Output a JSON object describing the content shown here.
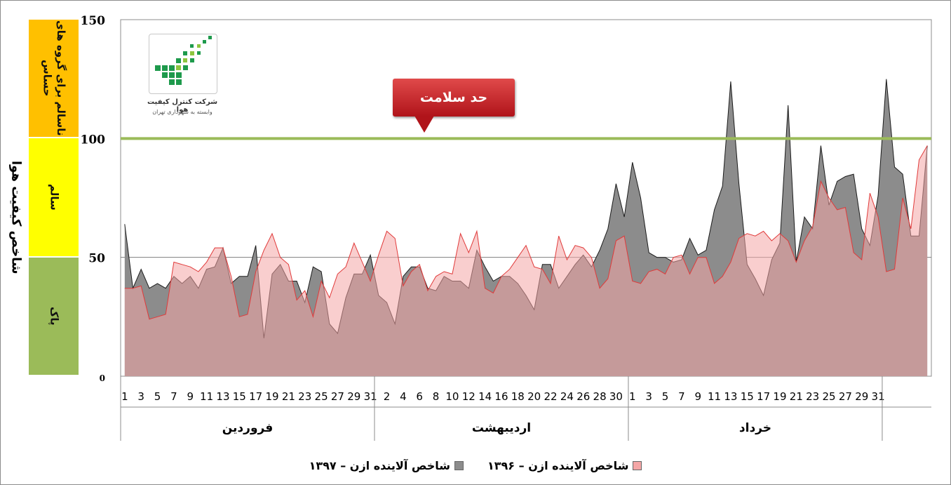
{
  "chart_data": {
    "type": "area",
    "ylabel": "شاخص کیفیت هوا",
    "ylim": [
      0,
      150
    ],
    "yticks": [
      "0",
      "50",
      "100",
      "150"
    ],
    "grid": "horizontal at 50",
    "months": [
      "فروردین",
      "اردیبهشت",
      "خرداد"
    ],
    "days_per_month": 31,
    "x_tick_labels": [
      "1",
      "3",
      "5",
      "7",
      "9",
      "11",
      "13",
      "15",
      "17",
      "19",
      "21",
      "23",
      "25",
      "27",
      "29",
      "31",
      "2",
      "4",
      "6",
      "8",
      "10",
      "12",
      "14",
      "16",
      "18",
      "20",
      "22",
      "24",
      "26",
      "28",
      "30",
      "1",
      "3",
      "5",
      "7",
      "9",
      "11",
      "13",
      "15",
      "17",
      "19",
      "21",
      "23",
      "25",
      "27",
      "29",
      "31"
    ],
    "threshold": {
      "value": 100,
      "label": "حد سلامت",
      "color": "#9bbb59"
    },
    "bands": [
      {
        "label": "پاک",
        "from": 0,
        "to": 50,
        "color": "#9bbb59"
      },
      {
        "label": "سالم",
        "from": 50,
        "to": 100,
        "color": "#ffff00"
      },
      {
        "label": "ناسالم برای گروه های حساس",
        "from": 100,
        "to": 150,
        "color": "#ffc000"
      }
    ],
    "series": [
      {
        "name": "شاخص آلاینده ازن – ۱۳۹۷",
        "color": "#8c8c8c",
        "values": [
          64,
          37,
          45,
          37,
          39,
          37,
          42,
          39,
          42,
          37,
          45,
          46,
          54,
          39,
          42,
          42,
          55,
          16,
          43,
          47,
          40,
          40,
          31,
          46,
          44,
          22,
          18,
          33,
          43,
          43,
          51,
          34,
          31,
          22,
          42,
          46,
          46,
          37,
          36,
          42,
          40,
          40,
          37,
          53,
          46,
          40,
          42,
          42,
          39,
          34,
          28,
          47,
          47,
          37,
          42,
          47,
          51,
          46,
          53,
          62,
          81,
          67,
          90,
          75,
          52,
          50,
          50,
          48,
          49,
          58,
          51,
          53,
          70,
          80,
          124,
          81,
          47,
          41,
          34,
          49,
          56,
          114,
          48,
          67,
          62,
          97,
          72,
          82,
          84,
          85,
          62,
          55,
          76,
          125,
          88,
          85,
          59,
          59,
          97
        ]
      },
      {
        "name": "شاخص آلاینده ازن – ۱۳۹۶",
        "color": "#f4a6a6",
        "values": [
          37,
          37,
          38,
          24,
          25,
          26,
          48,
          47,
          46,
          44,
          48,
          54,
          54,
          42,
          25,
          26,
          44,
          53,
          60,
          50,
          47,
          32,
          36,
          25,
          40,
          33,
          43,
          46,
          56,
          48,
          40,
          51,
          61,
          58,
          38,
          44,
          47,
          36,
          42,
          44,
          43,
          60,
          52,
          61,
          37,
          35,
          42,
          45,
          50,
          55,
          46,
          45,
          39,
          59,
          49,
          55,
          54,
          50,
          37,
          41,
          57,
          59,
          40,
          39,
          44,
          45,
          43,
          50,
          51,
          43,
          50,
          50,
          39,
          42,
          48,
          58,
          60,
          59,
          61,
          57,
          60,
          57,
          48,
          57,
          63,
          82,
          75,
          70,
          71,
          52,
          49,
          77,
          67,
          44,
          45,
          75,
          62,
          91,
          97
        ]
      }
    ]
  }
}
